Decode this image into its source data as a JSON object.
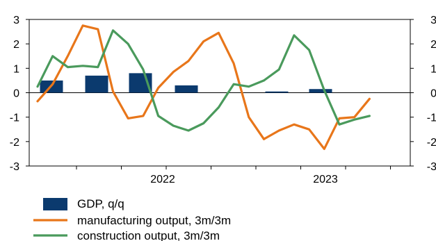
{
  "chart_data": {
    "type": "bar+line",
    "title": "",
    "xlabel": "",
    "ylabel": "",
    "ylim": [
      -3,
      3
    ],
    "yticks": [
      "3",
      "2",
      "1",
      "0",
      "-1",
      "-2",
      "-3"
    ],
    "y2ticks": [
      "3",
      "2",
      "1",
      "0",
      "-1",
      "-2",
      "-3"
    ],
    "xtick_labels": [
      {
        "label": "2022",
        "month_index": 18
      },
      {
        "label": "2023",
        "month_index": 30
      }
    ],
    "x_months": [
      "2021-08",
      "2021-09",
      "2021-10",
      "2021-11",
      "2021-12",
      "2022-01",
      "2022-02",
      "2022-03",
      "2022-04",
      "2022-05",
      "2022-06",
      "2022-07",
      "2022-08",
      "2022-09",
      "2022-10",
      "2022-11",
      "2022-12",
      "2023-01",
      "2023-02",
      "2023-03",
      "2023-04",
      "2023-05",
      "2023-06",
      "2023-07",
      "2023-08"
    ],
    "bars": {
      "name": "GDP, q/q",
      "color": "#0b3a6e",
      "points": [
        {
          "quarter": "2021 Q3",
          "value": 0.5
        },
        {
          "quarter": "2021 Q4",
          "value": 0.7
        },
        {
          "quarter": "2022 Q1",
          "value": 0.8
        },
        {
          "quarter": "2022 Q2",
          "value": 0.3
        },
        {
          "quarter": "2022 Q3",
          "value": 0.0
        },
        {
          "quarter": "2022 Q4",
          "value": 0.05
        },
        {
          "quarter": "2023 Q1",
          "value": 0.15
        }
      ]
    },
    "series": [
      {
        "name": "manufacturing output, 3m/3m",
        "color": "#e8761a",
        "values": [
          -0.35,
          0.35,
          1.5,
          2.75,
          2.6,
          0.05,
          -1.05,
          -0.95,
          0.2,
          0.85,
          1.3,
          2.1,
          2.45,
          1.2,
          -1.0,
          -1.9,
          -1.55,
          -1.3,
          -1.5,
          -2.3,
          -1.05,
          -1.0,
          -0.25
        ]
      },
      {
        "name": "construction output, 3m/3m",
        "color": "#4a9a5c",
        "values": [
          0.25,
          1.5,
          1.05,
          1.1,
          1.05,
          2.55,
          2.0,
          0.95,
          -0.95,
          -1.35,
          -1.55,
          -1.25,
          -0.6,
          0.35,
          0.25,
          0.5,
          0.95,
          2.35,
          1.75,
          0.1,
          -1.3,
          -1.1,
          -0.95
        ]
      }
    ],
    "legend": {
      "placement": "bottom-left",
      "entries": [
        "GDP, q/q",
        "manufacturing output, 3m/3m",
        "construction output, 3m/3m"
      ]
    },
    "grid": false,
    "zero_line": true
  }
}
